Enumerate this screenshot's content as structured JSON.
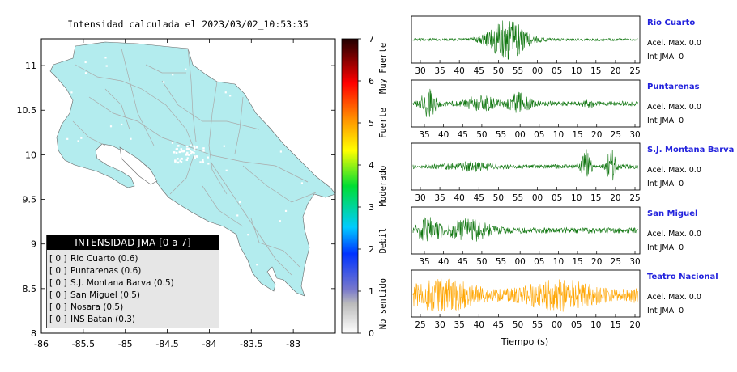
{
  "map": {
    "title": "Intensidad calculada el 2023/03/02_10:53:35",
    "x_ticks": [
      "-86",
      "-85.5",
      "-85",
      "-84.5",
      "-84",
      "-83.5",
      "-83"
    ],
    "y_ticks": [
      "11",
      "10.5",
      "10",
      "9.5",
      "9",
      "8.5",
      "8"
    ]
  },
  "colorbar": {
    "ticks": [
      "0",
      "1",
      "2",
      "3",
      "4",
      "5",
      "6",
      "7"
    ],
    "labels": [
      "No sentido",
      "Debil",
      "Moderado",
      "Fuerte",
      "Muy Fuerte"
    ]
  },
  "legend": {
    "title": "INTENSIDAD JMA [0 a 7]",
    "rows": [
      {
        "bracket": "[ 0 ]",
        "text": "Rio Cuarto (0.6)"
      },
      {
        "bracket": "[ 0 ]",
        "text": "Puntarenas (0.6)"
      },
      {
        "bracket": "[ 0 ]",
        "text": "S.J. Montana Barva (0.5)"
      },
      {
        "bracket": "[ 0 ]",
        "text": "San Miguel (0.5)"
      },
      {
        "bracket": "[ 0 ]",
        "text": "Nosara (0.5)"
      },
      {
        "bracket": "[ 0 ]",
        "text": "INS Batan (0.3)"
      }
    ]
  },
  "stations": [
    {
      "name": "Rio Cuarto",
      "acel": "Acel. Max. 0.0",
      "jma": "Int JMA: 0",
      "ticks": [
        "30",
        "35",
        "40",
        "45",
        "50",
        "55",
        "00",
        "05",
        "10",
        "15",
        "20",
        "25"
      ]
    },
    {
      "name": "Puntarenas",
      "acel": "Acel. Max. 0.0",
      "jma": "Int JMA: 0",
      "ticks": [
        "35",
        "40",
        "45",
        "50",
        "55",
        "00",
        "05",
        "10",
        "15",
        "20",
        "25",
        "30"
      ]
    },
    {
      "name": "S.J. Montana Barva",
      "acel": "Acel. Max. 0.0",
      "jma": "Int JMA: 0",
      "ticks": [
        "30",
        "35",
        "40",
        "45",
        "50",
        "55",
        "00",
        "05",
        "10",
        "15",
        "20",
        "25"
      ]
    },
    {
      "name": "San Miguel",
      "acel": "Acel. Max. 0.0",
      "jma": "Int JMA: 0",
      "ticks": [
        "35",
        "40",
        "45",
        "50",
        "55",
        "00",
        "05",
        "10",
        "15",
        "20",
        "25",
        "30"
      ]
    },
    {
      "name": "Teatro Nacional",
      "acel": "Acel. Max. 0.0",
      "jma": "Int JMA: 0",
      "ticks": [
        "25",
        "30",
        "35",
        "40",
        "45",
        "50",
        "55",
        "00",
        "05",
        "10",
        "15",
        "20"
      ]
    }
  ],
  "wave_xlabel": "Tiempo (s)",
  "colors": {
    "land": "#b3ecee",
    "road": "#aaaaaa",
    "wave": "#117711",
    "wave_highlight": "#ffa500",
    "station_name": "#2222dd"
  },
  "chart_data": [
    {
      "type": "scatter",
      "title": "Intensidad calculada el 2023/03/02_10:53:35",
      "xlim": [
        -86,
        -82.5
      ],
      "ylim": [
        8,
        11.3
      ],
      "x_ticks": [
        -86,
        -85.5,
        -85,
        -84.5,
        -84,
        -83.5,
        -83
      ],
      "y_ticks": [
        8,
        8.5,
        9,
        9.5,
        10,
        10.5,
        11
      ],
      "colorbar": {
        "range": [
          0,
          7
        ],
        "labels": [
          "No sentido",
          "Debil",
          "Moderado",
          "Fuerte",
          "Muy Fuerte"
        ]
      },
      "legend": "bottom-left"
    },
    {
      "type": "line",
      "xlabel": "Tiempo (s)",
      "series": [
        {
          "name": "Rio Cuarto",
          "intensity": 0
        },
        {
          "name": "Puntarenas",
          "intensity": 0
        },
        {
          "name": "S.J. Montana Barva",
          "intensity": 0
        },
        {
          "name": "San Miguel",
          "intensity": 0
        },
        {
          "name": "Teatro Nacional",
          "intensity": 0
        }
      ]
    }
  ]
}
